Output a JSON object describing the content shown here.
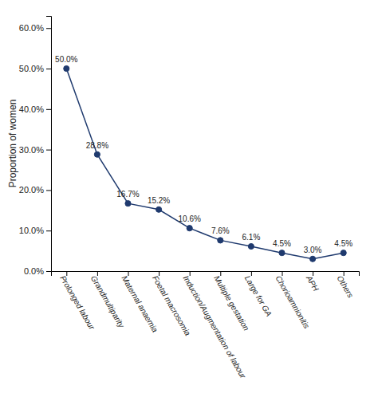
{
  "chart_data": {
    "type": "line",
    "categories": [
      "Prolonged labour",
      "Grandmultiparity",
      "Maternal anaemia",
      "Foetal macrosomia",
      "Induction/Augmentation of labour",
      "Multiple gestation",
      "Large for GA",
      "Chorioamnionitis",
      "APH",
      "Others"
    ],
    "values": [
      50.0,
      28.8,
      16.7,
      15.2,
      10.6,
      7.6,
      6.1,
      4.5,
      3.0,
      4.5
    ],
    "value_labels": [
      "50.0%",
      "28.8%",
      "16.7%",
      "15.2%",
      "10.6%",
      "7.6%",
      "6.1%",
      "4.5%",
      "3.0%",
      "4.5%"
    ],
    "data_labels": true,
    "color": "#1F3A6E",
    "marker": "circle",
    "ylabel": "Proportion of women",
    "ylim": [
      0,
      63
    ],
    "yticks": [
      {
        "value": 0.0,
        "label": "0.0%"
      },
      {
        "value": 10.0,
        "label": "10.0%"
      },
      {
        "value": 20.0,
        "label": "20.0%"
      },
      {
        "value": 30.0,
        "label": "30.0%"
      },
      {
        "value": 40.0,
        "label": "40.0%"
      },
      {
        "value": 50.0,
        "label": "50.0%"
      },
      {
        "value": 60.0,
        "label": "60.0%"
      }
    ],
    "grid": false
  }
}
